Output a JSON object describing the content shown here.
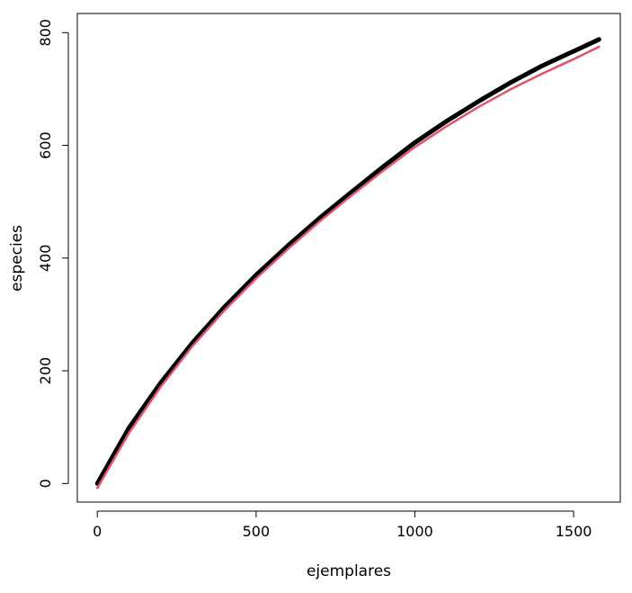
{
  "chart_data": {
    "type": "line",
    "x_label": "ejemplares",
    "y_label": "especies",
    "x": [
      0,
      100,
      200,
      300,
      400,
      500,
      600,
      700,
      800,
      900,
      1000,
      1100,
      1200,
      1300,
      1400,
      1500,
      1580
    ],
    "series": [
      {
        "color": "#000000",
        "width": 5,
        "values": [
          0,
          99,
          179,
          250,
          313,
          370,
          422,
          471,
          517,
          562,
          605,
          643,
          678,
          711,
          741,
          767,
          788
        ]
      },
      {
        "color": "#df536b",
        "width": 2.5,
        "values": [
          -8,
          90,
          172,
          244,
          307,
          364,
          416,
          465,
          511,
          555,
          597,
          634,
          668,
          699,
          727,
          753,
          775
        ]
      }
    ],
    "xlim": [
      -63,
      1647
    ],
    "ylim": [
      -33,
      834
    ],
    "xticks": [
      0,
      500,
      1000,
      1500
    ],
    "yticks": [
      0,
      200,
      400,
      600,
      800
    ]
  }
}
